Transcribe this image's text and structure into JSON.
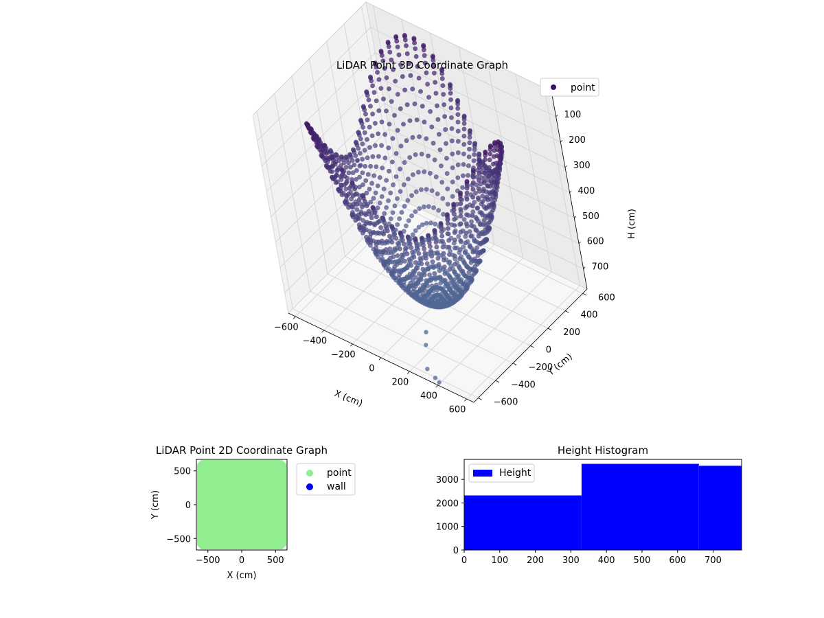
{
  "chart_data": [
    {
      "type": "scatter3d",
      "title": "LiDAR Point 3D Coordinate Graph",
      "xlabel": "X (cm)",
      "ylabel": "Y (cm)",
      "zlabel": "H (cm)",
      "x_ticks": [
        -600,
        -400,
        -200,
        0,
        200,
        400,
        600
      ],
      "y_ticks": [
        -600,
        -400,
        -200,
        0,
        200,
        400,
        600
      ],
      "z_ticks": [
        0,
        100,
        200,
        300,
        400,
        500,
        600,
        700
      ],
      "xlim": [
        -650,
        650
      ],
      "ylim": [
        -650,
        650
      ],
      "zlim": [
        0,
        780
      ],
      "z_inverted": true,
      "grid": true,
      "legend": {
        "placement": "top-right",
        "entries": [
          {
            "label": "point",
            "color": "#3b0f70"
          }
        ]
      },
      "series": [
        {
          "name": "point",
          "description_colormap": "viridis (purple to blue-grey)",
          "scan_lines": {
            "count": 72,
            "max_radius": 620,
            "max_height": 780,
            "tilted_offset_range": [
              -200,
              200
            ]
          },
          "outliers": [
            {
              "x": -640,
              "y": 300,
              "h": 520
            },
            {
              "x": -620,
              "y": 250,
              "h": 480
            },
            {
              "x": 50,
              "y": -150,
              "h": 720
            },
            {
              "x": 120,
              "y": -320,
              "h": 760
            },
            {
              "x": 180,
              "y": -420,
              "h": 760
            },
            {
              "x": 300,
              "y": -600,
              "h": 760
            },
            {
              "x": 380,
              "y": -640,
              "h": 760
            },
            {
              "x": 420,
              "y": -660,
              "h": 760
            }
          ]
        }
      ]
    },
    {
      "type": "scatter",
      "title": "LiDAR Point 2D Coordinate Graph",
      "xlabel": "X (cm)",
      "ylabel": "Y (cm)",
      "x_ticks": [
        -500,
        0,
        500
      ],
      "y_ticks": [
        -500,
        0,
        500
      ],
      "xlim": [
        -670,
        670
      ],
      "ylim": [
        -670,
        670
      ],
      "legend": {
        "placement": "outside-right",
        "entries": [
          {
            "label": "point",
            "color": "#90ee90"
          },
          {
            "label": "wall",
            "color": "#0000ff"
          }
        ]
      },
      "series": [
        {
          "name": "point",
          "color": "#90ee90",
          "region": {
            "x": [
              -660,
              660
            ],
            "y": [
              -660,
              660
            ]
          }
        },
        {
          "name": "wall",
          "color": "#0000ff",
          "points": []
        }
      ]
    },
    {
      "type": "bar",
      "title": "Height Histogram",
      "x_ticks": [
        0,
        100,
        200,
        300,
        400,
        500,
        600,
        700
      ],
      "y_ticks": [
        0,
        1000,
        2000,
        3000
      ],
      "xlim": [
        0,
        780
      ],
      "ylim": [
        0,
        3850
      ],
      "legend": {
        "placement": "top-left",
        "entries": [
          {
            "label": "Height",
            "color": "#0000ff"
          }
        ]
      },
      "color": "#0000ff",
      "bins": [
        {
          "start": 0,
          "end": 330,
          "count": 2320
        },
        {
          "start": 330,
          "end": 660,
          "count": 3660
        },
        {
          "start": 660,
          "end": 780,
          "count": 3580
        }
      ]
    }
  ]
}
